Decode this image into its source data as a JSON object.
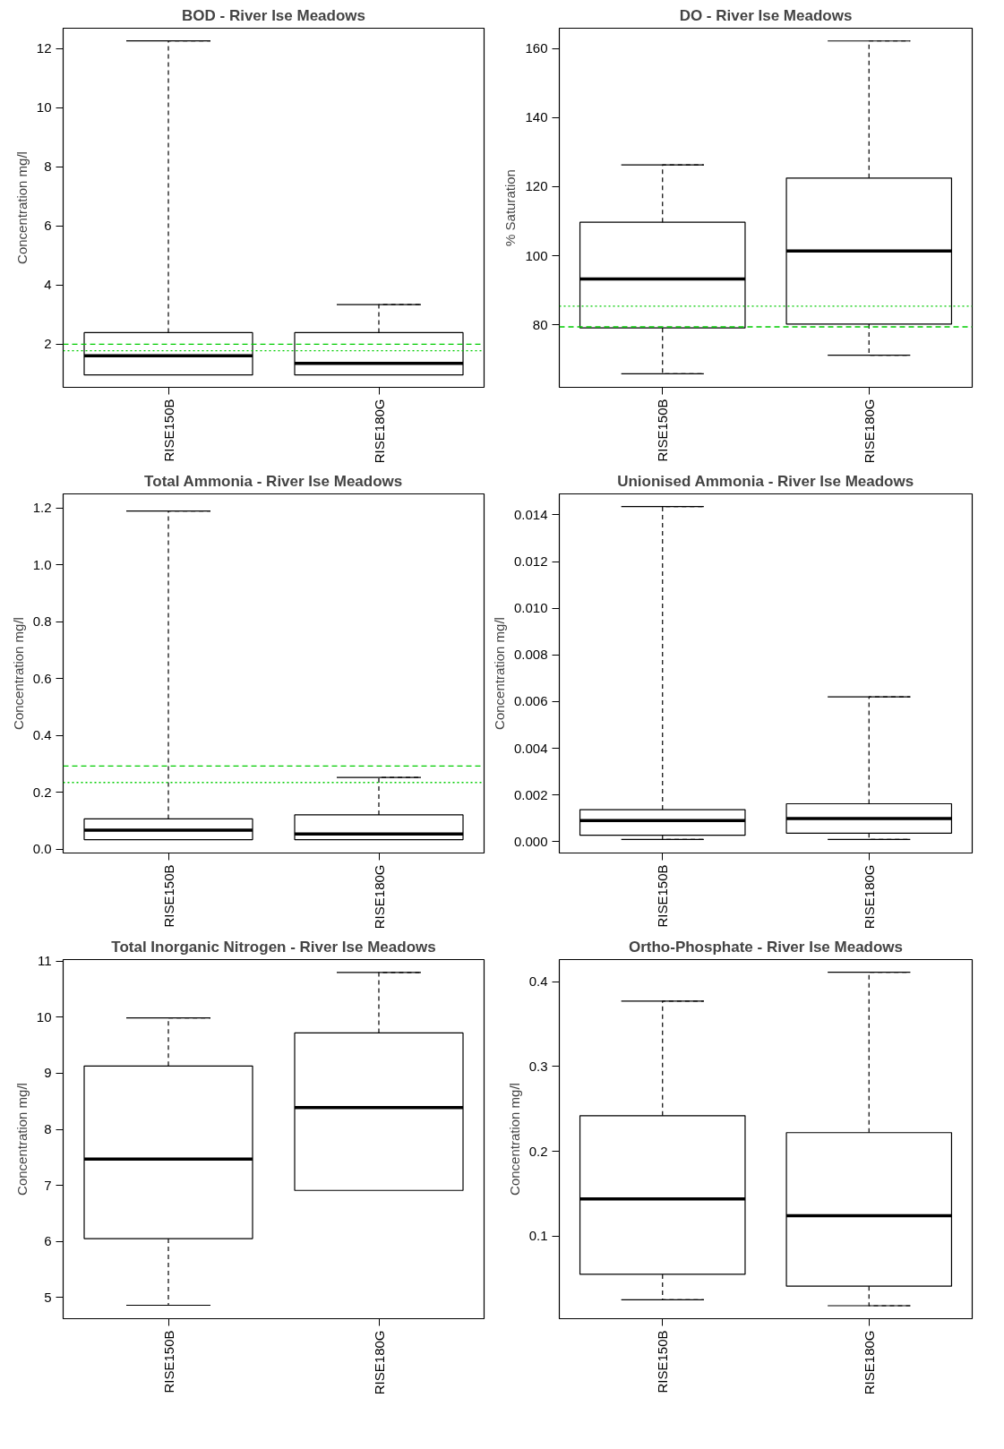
{
  "chart_data": [
    {
      "type": "box",
      "title": "BOD - River Ise Meadows",
      "ylabel": "Concentration mg/l",
      "categories": [
        "RISE150B",
        "RISE180G"
      ],
      "boxes": [
        {
          "low": 0.96,
          "q1": 0.96,
          "median": 1.61,
          "q3": 2.39,
          "high": 12.26
        },
        {
          "low": 0.96,
          "q1": 0.96,
          "median": 1.35,
          "q3": 2.39,
          "high": 3.34
        }
      ],
      "ylim": [
        0.54,
        12.69
      ],
      "yticks": [
        2,
        4,
        6,
        8,
        10,
        12
      ],
      "grid": false,
      "ref_lines": [
        {
          "axis": "y",
          "value": 2.0,
          "color": "#00cc00",
          "line_style": "dashed"
        },
        {
          "axis": "y",
          "value": 1.78,
          "color": "#00cc00",
          "line_style": "dotted"
        }
      ]
    },
    {
      "type": "box",
      "title": "DO - River Ise Meadows",
      "ylabel": "% Saturation",
      "categories": [
        "RISE150B",
        "RISE180G"
      ],
      "boxes": [
        {
          "low": 65.8,
          "q1": 79.1,
          "median": 93.3,
          "q3": 109.7,
          "high": 126.3
        },
        {
          "low": 71.2,
          "q1": 80.2,
          "median": 101.4,
          "q3": 122.5,
          "high": 162.2
        }
      ],
      "ylim": [
        61.9,
        165.9
      ],
      "yticks": [
        80,
        100,
        120,
        140,
        160
      ],
      "grid": false,
      "ref_lines": [
        {
          "axis": "y",
          "value": 85.4,
          "color": "#00cc00",
          "line_style": "dotted"
        },
        {
          "axis": "y",
          "value": 79.4,
          "color": "#00cc00",
          "line_style": "dashed"
        }
      ]
    },
    {
      "type": "box",
      "title": "Total Ammonia - River Ise Meadows",
      "ylabel": "Concentration mg/l",
      "categories": [
        "RISE150B",
        "RISE180G"
      ],
      "boxes": [
        {
          "low": 0.034,
          "q1": 0.034,
          "median": 0.067,
          "q3": 0.107,
          "high": 1.19
        },
        {
          "low": 0.034,
          "q1": 0.034,
          "median": 0.054,
          "q3": 0.121,
          "high": 0.253
        }
      ],
      "ylim": [
        -0.013,
        1.25
      ],
      "yticks": [
        {
          "value": 0,
          "label": "0.0"
        },
        0.2,
        0.4,
        0.6,
        0.8,
        {
          "value": 1,
          "label": "1.0"
        },
        1.2
      ],
      "grid": false,
      "ref_lines": [
        {
          "axis": "y",
          "value": 0.293,
          "color": "#00cc00",
          "line_style": "dashed"
        },
        {
          "axis": "y",
          "value": 0.235,
          "color": "#00cc00",
          "line_style": "dotted"
        }
      ]
    },
    {
      "type": "box",
      "title": "Unionised Ammonia - River Ise Meadows",
      "ylabel": "Concentration mg/l",
      "categories": [
        "RISE150B",
        "RISE180G"
      ],
      "boxes": [
        {
          "low": 9e-05,
          "q1": 0.00027,
          "median": 0.0009,
          "q3": 0.00137,
          "high": 0.01436
        },
        {
          "low": 9e-05,
          "q1": 0.00036,
          "median": 0.00099,
          "q3": 0.00162,
          "high": 0.0062
        }
      ],
      "ylim": [
        -0.00049,
        0.0149
      ],
      "yticks": [
        {
          "value": 0,
          "label": "0.000"
        },
        {
          "value": 0.002,
          "label": "0.002"
        },
        {
          "value": 0.004,
          "label": "0.004"
        },
        {
          "value": 0.006,
          "label": "0.006"
        },
        {
          "value": 0.008,
          "label": "0.008"
        },
        {
          "value": 0.01,
          "label": "0.010"
        },
        {
          "value": 0.012,
          "label": "0.012"
        },
        {
          "value": 0.014,
          "label": "0.014"
        }
      ],
      "grid": false
    },
    {
      "type": "box",
      "title": "Total Inorganic Nitrogen - River Ise Meadows",
      "ylabel": "Concentration mg/l",
      "categories": [
        "RISE150B",
        "RISE180G"
      ],
      "boxes": [
        {
          "low": 4.86,
          "q1": 6.05,
          "median": 7.47,
          "q3": 9.13,
          "high": 9.99
        },
        {
          "low": 6.91,
          "q1": 6.91,
          "median": 8.39,
          "q3": 9.72,
          "high": 10.8
        }
      ],
      "ylim": [
        4.62,
        11.03
      ],
      "yticks": [
        5,
        6,
        7,
        8,
        9,
        10,
        11
      ],
      "grid": false
    },
    {
      "type": "box",
      "title": "Ortho-Phosphate - River Ise Meadows",
      "ylabel": "Concentration mg/l",
      "categories": [
        "RISE150B",
        "RISE180G"
      ],
      "boxes": [
        {
          "low": 0.025,
          "q1": 0.055,
          "median": 0.144,
          "q3": 0.242,
          "high": 0.377
        },
        {
          "low": 0.018,
          "q1": 0.041,
          "median": 0.124,
          "q3": 0.222,
          "high": 0.411
        }
      ],
      "ylim": [
        0.0027,
        0.426
      ],
      "yticks": [
        0.1,
        0.2,
        0.3,
        0.4
      ],
      "grid": false
    }
  ]
}
